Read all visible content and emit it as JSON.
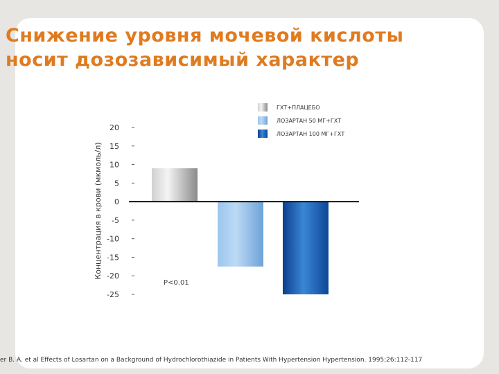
{
  "title": {
    "line1": "Снижение уровня мочевой кислоты",
    "line2": "носит дозозависимый характер"
  },
  "citation": "er B. A. et al Effects of Losartan on a Background of Hydrochlorothiazide in Patients With Hypertension Hypertension. 1995;26:112-117",
  "colors": {
    "title": "#e07b1f",
    "series": [
      "#a8a8a8",
      "#7fb2e0",
      "#1555a8"
    ]
  },
  "chart_data": {
    "type": "bar",
    "ylabel": "Концентрация в крови (мкмоль/л)",
    "ylim": [
      -25,
      20
    ],
    "yticks": [
      20,
      15,
      10,
      5,
      0,
      -5,
      -10,
      -15,
      -20,
      -25
    ],
    "ytick_labels": [
      "20",
      "15",
      "10",
      "5",
      "0",
      "-5",
      "-10",
      "-15",
      "-20",
      "-25"
    ],
    "grid": false,
    "legend_position": "top-right",
    "series": [
      {
        "name": "ГХТ+ПЛАЦЕБО",
        "values": [
          9
        ]
      },
      {
        "name": "ЛОЗАРТАН 50 МГ+ГХТ",
        "values": [
          -17.5
        ]
      },
      {
        "name": "ЛОЗАРТАН 100 МГ+ГХТ",
        "values": [
          -25
        ]
      }
    ],
    "annotation": "P<0.01"
  }
}
